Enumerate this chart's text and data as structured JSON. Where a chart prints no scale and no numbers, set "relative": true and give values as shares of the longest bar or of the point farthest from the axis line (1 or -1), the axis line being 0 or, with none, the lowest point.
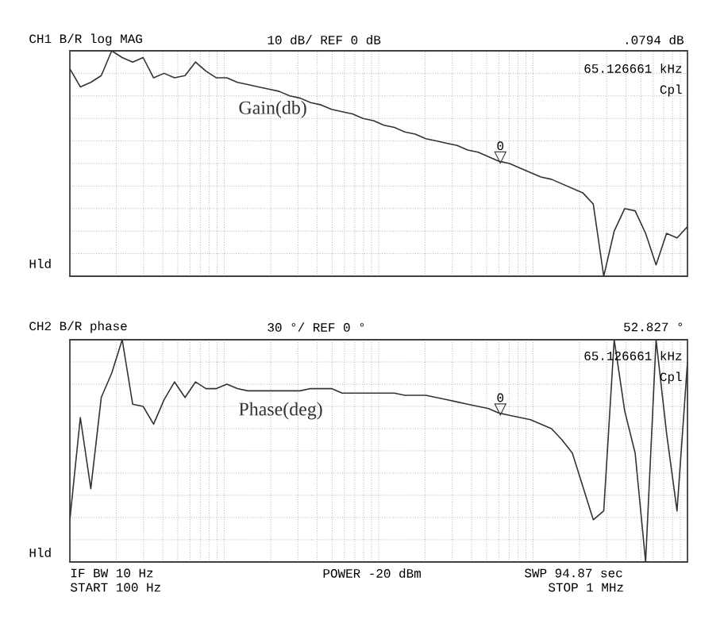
{
  "chart_data": [
    {
      "type": "line",
      "title": "CH1 B/R  log MAG",
      "relative": true,
      "grid": true,
      "categories": [
        null,
        null,
        null,
        null,
        null,
        null,
        null,
        null,
        null,
        null,
        null,
        null,
        null,
        null,
        null,
        null,
        null,
        null,
        null,
        null,
        null,
        null,
        null,
        null,
        null,
        null,
        null,
        null,
        null,
        null,
        null,
        null,
        null,
        null,
        null,
        null,
        null,
        null,
        null,
        null,
        null,
        null,
        null,
        null,
        null,
        null,
        null,
        null,
        null,
        null,
        null,
        null,
        null,
        null,
        null,
        null,
        null,
        null,
        null,
        null
      ],
      "series": [
        {
          "name": "Gain(db)",
          "color": "#333333",
          "values": [
            0.92,
            0.84,
            0.86,
            0.89,
            1,
            0.97,
            0.95,
            0.97,
            0.88,
            0.9,
            0.88,
            0.89,
            0.95,
            0.91,
            0.88,
            0.88,
            0.86,
            0.85,
            0.84,
            0.83,
            0.82,
            0.8,
            0.79,
            0.77,
            0.76,
            0.74,
            0.73,
            0.72,
            0.7,
            0.69,
            0.67,
            0.66,
            0.64,
            0.63,
            0.61,
            0.6,
            0.59,
            0.58,
            0.56,
            0.55,
            0.53,
            0.51,
            0.5,
            0.48,
            0.46,
            0.44,
            0.43,
            0.41,
            0.39,
            0.37,
            0.32,
            0,
            0.2,
            0.3,
            0.29,
            0.19,
            0.05,
            0.19,
            0.17,
            0.22
          ]
        }
      ],
      "annotations": [
        "10 dB/ REF 0 dB",
        ".0794 dB",
        "65.126661 kHz",
        "Cpl",
        "Hld",
        {
          "text": "0",
          "y": 0.53
        }
      ]
    },
    {
      "type": "line",
      "title": "CH2 B/R  phase",
      "relative": true,
      "grid": true,
      "categories": [
        null,
        null,
        null,
        null,
        null,
        null,
        null,
        null,
        null,
        null,
        null,
        null,
        null,
        null,
        null,
        null,
        null,
        null,
        null,
        null,
        null,
        null,
        null,
        null,
        null,
        null,
        null,
        null,
        null,
        null,
        null,
        null,
        null,
        null,
        null,
        null,
        null,
        null,
        null,
        null,
        null,
        null,
        null,
        null,
        null,
        null,
        null,
        null,
        null,
        null,
        null,
        null,
        null,
        null,
        null,
        null,
        null,
        null,
        null,
        null
      ],
      "series": [
        {
          "name": "Phase(deg)",
          "color": "#333333",
          "values": [
            0.19,
            0.65,
            0.33,
            0.74,
            0.85,
            1,
            0.71,
            0.7,
            0.62,
            0.73,
            0.81,
            0.74,
            0.81,
            0.78,
            0.78,
            0.8,
            0.78,
            0.77,
            0.77,
            0.77,
            0.77,
            0.77,
            0.77,
            0.78,
            0.78,
            0.78,
            0.76,
            0.76,
            0.76,
            0.76,
            0.76,
            0.76,
            0.75,
            0.75,
            0.75,
            0.74,
            0.73,
            0.72,
            0.71,
            0.7,
            0.69,
            0.67,
            0.66,
            0.65,
            0.64,
            0.62,
            0.6,
            0.55,
            0.49,
            0.34,
            0.19,
            0.23,
            1,
            0.68,
            0.49,
            0,
            1,
            0.58,
            0.23,
            0.9
          ]
        }
      ],
      "annotations": [
        "30 °/ REF 0 °",
        "52.827 °",
        "65.126661 kHz",
        "Cpl",
        "Hld",
        "IF BW 10 Hz",
        "START 100 Hz",
        "POWER -20 dBm",
        "SWP 94.87 sec",
        "STOP 1 MHz",
        {
          "text": "0",
          "y": 0.69
        }
      ]
    }
  ]
}
